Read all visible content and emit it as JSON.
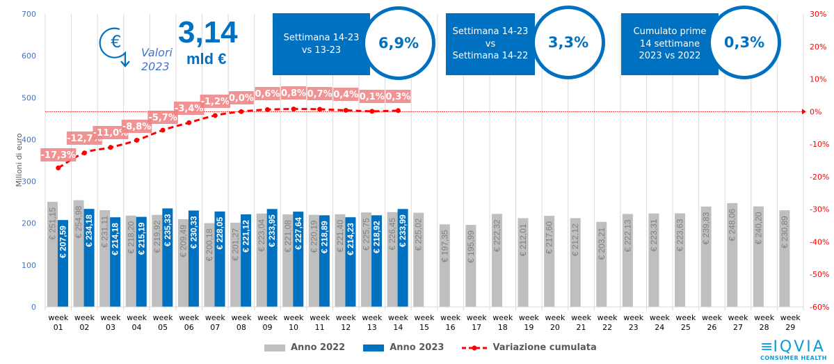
{
  "header": {
    "big_value": "3,14",
    "big_unit": "mld €",
    "valori_line1": "Valori",
    "valori_line2": "2023",
    "icon": "euro-down-arrow-icon"
  },
  "kpis": [
    {
      "label_lines": [
        "Settimana 14-23",
        "vs 13-23"
      ],
      "value": "6,9%"
    },
    {
      "label_lines": [
        "Settimana 14-23",
        "vs",
        "Settimana 14-22"
      ],
      "value": "3,3%"
    },
    {
      "label_lines": [
        "Cumulato prime",
        "14 settimane",
        "2023 vs 2022"
      ],
      "value": "0,3%"
    }
  ],
  "legend": {
    "s2022": "Anno 2022",
    "s2023": "Anno 2023",
    "line": "Variazione cumulata"
  },
  "logo": {
    "name": "IQVIA",
    "sub": "CONSUMER HEALTH"
  },
  "colors": {
    "s2022": "#bfbfbf",
    "s2023": "#0070c0",
    "line": "#ff0000",
    "label_bg": "#f08080"
  },
  "chart_data": {
    "type": "bar",
    "title": "",
    "ylabel": "Milioni di euro",
    "ylabel_right": "",
    "ylim": [
      0,
      700
    ],
    "yticks": [
      0,
      100,
      200,
      300,
      400,
      500,
      600,
      700
    ],
    "y2lim": [
      -60,
      30
    ],
    "y2ticks": [
      "-60%",
      "-50%",
      "-40%",
      "-30%",
      "-20%",
      "-10%",
      "0%",
      "10%",
      "20%",
      "30%"
    ],
    "grid": "vertical",
    "legend_position": "bottom",
    "categories": [
      "week 01",
      "week 02",
      "week 03",
      "week 04",
      "week 05",
      "week 06",
      "week 07",
      "week 08",
      "week 09",
      "week 10",
      "week 11",
      "week 12",
      "week 13",
      "week 14",
      "week 15",
      "week 16",
      "week 17",
      "week 18",
      "week 19",
      "week 20",
      "week 21",
      "week 22",
      "week 23",
      "week 24",
      "week 25",
      "week 26",
      "week 27",
      "week 28",
      "week 29"
    ],
    "series": [
      {
        "name": "Anno 2022",
        "type": "bar",
        "values": [
          251.15,
          254.98,
          231.11,
          218.2,
          219.92,
          209.49,
          200.18,
          201.27,
          223.04,
          221.08,
          220.19,
          221.4,
          225.75,
          226.45,
          225.02,
          197.35,
          195.99,
          222.32,
          212.01,
          217.6,
          212.12,
          203.21,
          222.13,
          223.31,
          223.63,
          239.83,
          248.06,
          240.2,
          230.89
        ],
        "labels": [
          "€ 251,15",
          "€ 254,98",
          "€ 231,11",
          "€ 218,20",
          "€ 219,92",
          "€ 209,49",
          "€ 200,18",
          "€ 201,27",
          "€ 223,04",
          "€ 221,08",
          "€ 220,19",
          "€ 221,40",
          "€ 225,75",
          "€ 226,45",
          "€ 225,02",
          "€ 197,35",
          "€ 195,99",
          "€ 222,32",
          "€ 212,01",
          "€ 217,60",
          "€ 212,12",
          "€ 203,21",
          "€ 222,13",
          "€ 223,31",
          "€ 223,63",
          "€ 239,83",
          "€ 248,06",
          "€ 240,20",
          "€ 230,89"
        ]
      },
      {
        "name": "Anno 2023",
        "type": "bar",
        "values": [
          207.59,
          234.18,
          214.18,
          215.19,
          235.33,
          230.33,
          228.05,
          221.12,
          233.95,
          227.64,
          218.89,
          214.23,
          218.92,
          233.99
        ],
        "labels": [
          "€ 207,59",
          "€ 234,18",
          "€ 214,18",
          "€ 215,19",
          "€ 235,33",
          "€ 230,33",
          "€ 228,05",
          "€ 221,12",
          "€ 233,95",
          "€ 227,64",
          "€ 218,89",
          "€ 214,23",
          "€ 218,92",
          "€ 233,99"
        ]
      },
      {
        "name": "Variazione cumulata",
        "type": "line",
        "axis": "right",
        "values": [
          -17.3,
          -12.7,
          -11.0,
          -8.8,
          -5.7,
          -3.4,
          -1.2,
          0.0,
          0.6,
          0.8,
          0.7,
          0.4,
          0.1,
          0.3
        ],
        "labels": [
          "-17,3%",
          "-12,7%",
          "-11,0%",
          "-8,8%",
          "-5,7%",
          "-3,4%",
          "-1,2%",
          "0,0%",
          "0,6%",
          "0,8%",
          "0,7%",
          "0,4%",
          "0,1%",
          "0,3%"
        ]
      }
    ]
  }
}
